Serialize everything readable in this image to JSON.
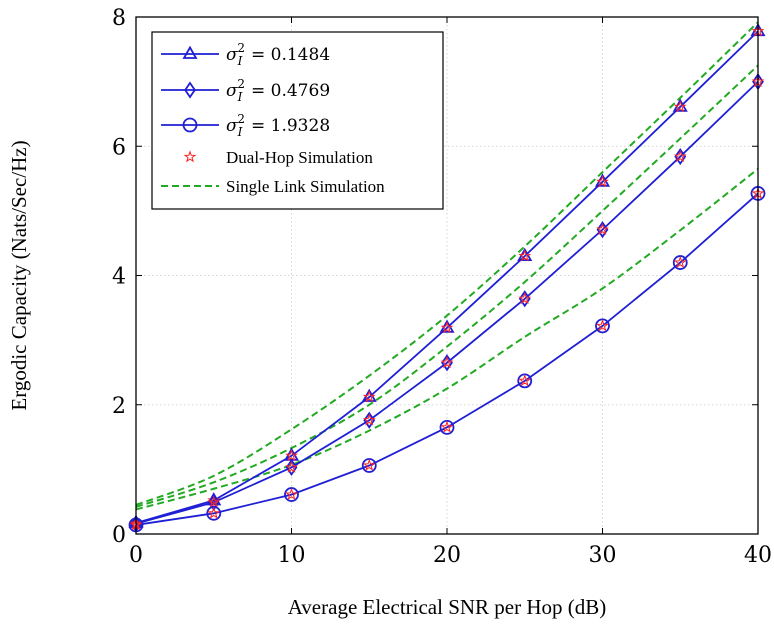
{
  "chart_data": {
    "type": "line",
    "xlabel": "Average Electrical SNR per Hop (dB)",
    "ylabel": "Ergodic Capacity (Nats/Sec/Hz)",
    "xlim": [
      0,
      40
    ],
    "ylim": [
      0,
      8
    ],
    "xticks": [
      0,
      10,
      20,
      30,
      40
    ],
    "yticks": [
      0,
      2,
      4,
      6,
      8
    ],
    "grid": true,
    "legend_position": "top-left",
    "x": [
      0,
      5,
      10,
      15,
      20,
      25,
      30,
      35,
      40
    ],
    "series": [
      {
        "name": "σ_I^2 = 0.1484",
        "legend_symbol": "σ",
        "legend_sub": "I",
        "legend_sup": "2",
        "legend_value": "= 0.1484",
        "marker": "triangle",
        "color": "#1f1fd6",
        "values": [
          0.17,
          0.52,
          1.21,
          2.12,
          3.19,
          4.3,
          5.45,
          6.61,
          7.78
        ]
      },
      {
        "name": "σ_I^2 = 0.4769",
        "legend_symbol": "σ",
        "legend_sub": "I",
        "legend_sup": "2",
        "legend_value": "= 0.4769",
        "marker": "diamond",
        "color": "#1f1fd6",
        "values": [
          0.16,
          0.49,
          1.03,
          1.76,
          2.65,
          3.64,
          4.71,
          5.84,
          7.0
        ]
      },
      {
        "name": "σ_I^2 = 1.9328",
        "legend_symbol": "σ",
        "legend_sub": "I",
        "legend_sup": "2",
        "legend_value": "= 1.9328",
        "marker": "circle",
        "color": "#1f1fd6",
        "values": [
          0.14,
          0.32,
          0.61,
          1.06,
          1.65,
          2.37,
          3.22,
          4.2,
          5.27
        ]
      }
    ],
    "dual_hop_simulation": {
      "name": "Dual-Hop Simulation",
      "marker": "star",
      "color": "#ff2020"
    },
    "single_link_simulation": {
      "name": "Single Link Simulation",
      "style": "dashed",
      "color": "#22aa22",
      "series": [
        {
          "values": [
            0.45,
            0.9,
            1.62,
            2.45,
            3.38,
            4.45,
            5.6,
            6.75,
            7.92
          ]
        },
        {
          "values": [
            0.42,
            0.8,
            1.33,
            2.0,
            2.9,
            3.9,
            5.0,
            6.12,
            7.25
          ]
        },
        {
          "values": [
            0.38,
            0.7,
            1.07,
            1.6,
            2.25,
            3.05,
            3.8,
            4.7,
            5.65
          ]
        }
      ]
    }
  }
}
